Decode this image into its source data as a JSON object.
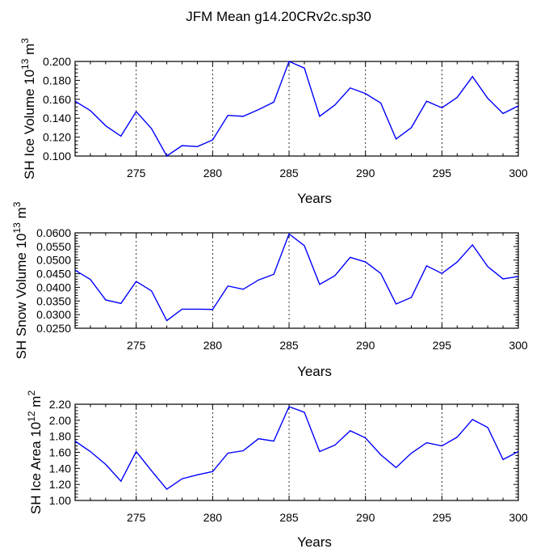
{
  "figure_title": "JFM Mean g14.20CRv2c.sp30",
  "chart_data": [
    {
      "type": "line",
      "title": "JFM Mean g14.20CRv2c.sp30",
      "xlabel": "Years",
      "ylabel": "SH Ice Volume 10",
      "ylabel_exp": "13",
      "ylabel_unit": " m",
      "ylabel_unit_exp": "3",
      "xlim": [
        271,
        300
      ],
      "ylim": [
        0.1,
        0.2
      ],
      "xticks": [
        275,
        280,
        285,
        290,
        295,
        300
      ],
      "yticks": [
        0.1,
        0.12,
        0.14,
        0.16,
        0.18,
        0.2
      ],
      "ytick_labels": [
        "0.100",
        "0.120",
        "0.140",
        "0.160",
        "0.180",
        "0.200"
      ],
      "grid_x": [
        275,
        280,
        285,
        290,
        295
      ],
      "color": "#0000ff",
      "x": [
        271,
        272,
        273,
        274,
        275,
        276,
        277,
        278,
        279,
        280,
        281,
        282,
        283,
        284,
        285,
        286,
        287,
        288,
        289,
        290,
        291,
        292,
        293,
        294,
        295,
        296,
        297,
        298,
        299,
        300
      ],
      "values": [
        0.158,
        0.148,
        0.132,
        0.121,
        0.147,
        0.129,
        0.1,
        0.111,
        0.11,
        0.117,
        0.143,
        0.142,
        0.149,
        0.157,
        0.2,
        0.193,
        0.142,
        0.154,
        0.172,
        0.166,
        0.156,
        0.118,
        0.13,
        0.158,
        0.151,
        0.162,
        0.184,
        0.161,
        0.145,
        0.153
      ]
    },
    {
      "type": "line",
      "xlabel": "Years",
      "ylabel": "SH Snow Volume 10",
      "ylabel_exp": "13",
      "ylabel_unit": " m",
      "ylabel_unit_exp": "3",
      "xlim": [
        271,
        300
      ],
      "ylim": [
        0.025,
        0.06
      ],
      "xticks": [
        275,
        280,
        285,
        290,
        295,
        300
      ],
      "yticks": [
        0.025,
        0.03,
        0.035,
        0.04,
        0.045,
        0.05,
        0.055,
        0.06
      ],
      "ytick_labels": [
        "0.0250",
        "0.0300",
        "0.0350",
        "0.0400",
        "0.0450",
        "0.0500",
        "0.0550",
        "0.0600"
      ],
      "grid_x": [
        275,
        280,
        285,
        290,
        295
      ],
      "color": "#0000ff",
      "x": [
        271,
        272,
        273,
        274,
        275,
        276,
        277,
        278,
        279,
        280,
        281,
        282,
        283,
        284,
        285,
        286,
        287,
        288,
        289,
        290,
        291,
        292,
        293,
        294,
        295,
        296,
        297,
        298,
        299,
        300
      ],
      "values": [
        0.0463,
        0.0429,
        0.0354,
        0.0341,
        0.0422,
        0.0387,
        0.0278,
        0.032,
        0.032,
        0.0319,
        0.0405,
        0.0393,
        0.0427,
        0.0448,
        0.0596,
        0.0553,
        0.0411,
        0.0443,
        0.051,
        0.0493,
        0.0451,
        0.0339,
        0.0363,
        0.0479,
        0.0451,
        0.0493,
        0.0556,
        0.0476,
        0.0431,
        0.044
      ]
    },
    {
      "type": "line",
      "xlabel": "Years",
      "ylabel": "SH Ice Area 10",
      "ylabel_exp": "12",
      "ylabel_unit": " m",
      "ylabel_unit_exp": "2",
      "xlim": [
        271,
        300
      ],
      "ylim": [
        1.0,
        2.2
      ],
      "xticks": [
        275,
        280,
        285,
        290,
        295,
        300
      ],
      "yticks": [
        1.0,
        1.2,
        1.4,
        1.6,
        1.8,
        2.0,
        2.2
      ],
      "ytick_labels": [
        "1.00",
        "1.20",
        "1.40",
        "1.60",
        "1.80",
        "2.00",
        "2.20"
      ],
      "grid_x": [
        275,
        280,
        285,
        290,
        295
      ],
      "color": "#0000ff",
      "x": [
        271,
        272,
        273,
        274,
        275,
        276,
        277,
        278,
        279,
        280,
        281,
        282,
        283,
        284,
        285,
        286,
        287,
        288,
        289,
        290,
        291,
        292,
        293,
        294,
        295,
        296,
        297,
        298,
        299,
        300
      ],
      "values": [
        1.74,
        1.61,
        1.45,
        1.24,
        1.61,
        1.37,
        1.14,
        1.27,
        1.32,
        1.36,
        1.59,
        1.62,
        1.77,
        1.74,
        2.17,
        2.1,
        1.61,
        1.69,
        1.87,
        1.78,
        1.57,
        1.41,
        1.59,
        1.72,
        1.68,
        1.79,
        2.01,
        1.91,
        1.51,
        1.61
      ]
    }
  ]
}
